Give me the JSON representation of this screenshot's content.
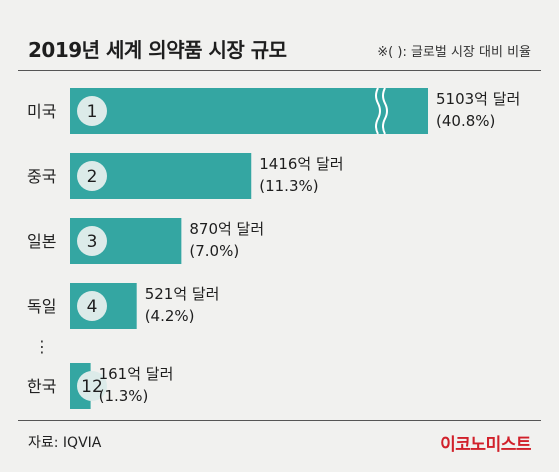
{
  "header": {
    "title": "2019년 세계 의약품 시장 규모",
    "note": "※( ): 글로벌 시장 대비 비율"
  },
  "chart_data": {
    "type": "bar",
    "orientation": "horizontal",
    "title": "2019년 세계 의약품 시장 규모",
    "unit": "억 달러",
    "categories": [
      "미국",
      "중국",
      "일본",
      "독일",
      "한국"
    ],
    "ranks": [
      "1",
      "2",
      "3",
      "4",
      "12"
    ],
    "values": [
      5103,
      1416,
      870,
      521,
      161
    ],
    "shares": [
      40.8,
      11.3,
      7.0,
      4.2,
      1.3
    ],
    "value_labels": [
      "5103억 달러",
      "1416억 달러",
      "870억 달러",
      "521억 달러",
      "161억 달러"
    ],
    "share_labels": [
      "(40.8%)",
      "(11.3%)",
      "(7.0%)",
      "(4.2%)",
      "(1.3%)"
    ],
    "axis_break": "미국",
    "ellipsis": "⋮",
    "colors": {
      "bar": "#34a6a2",
      "rank_circle": "#dcebe9",
      "break_line": "#ffffff"
    }
  },
  "footer": {
    "source": "자료: IQVIA",
    "brand": "이코노미스트"
  }
}
